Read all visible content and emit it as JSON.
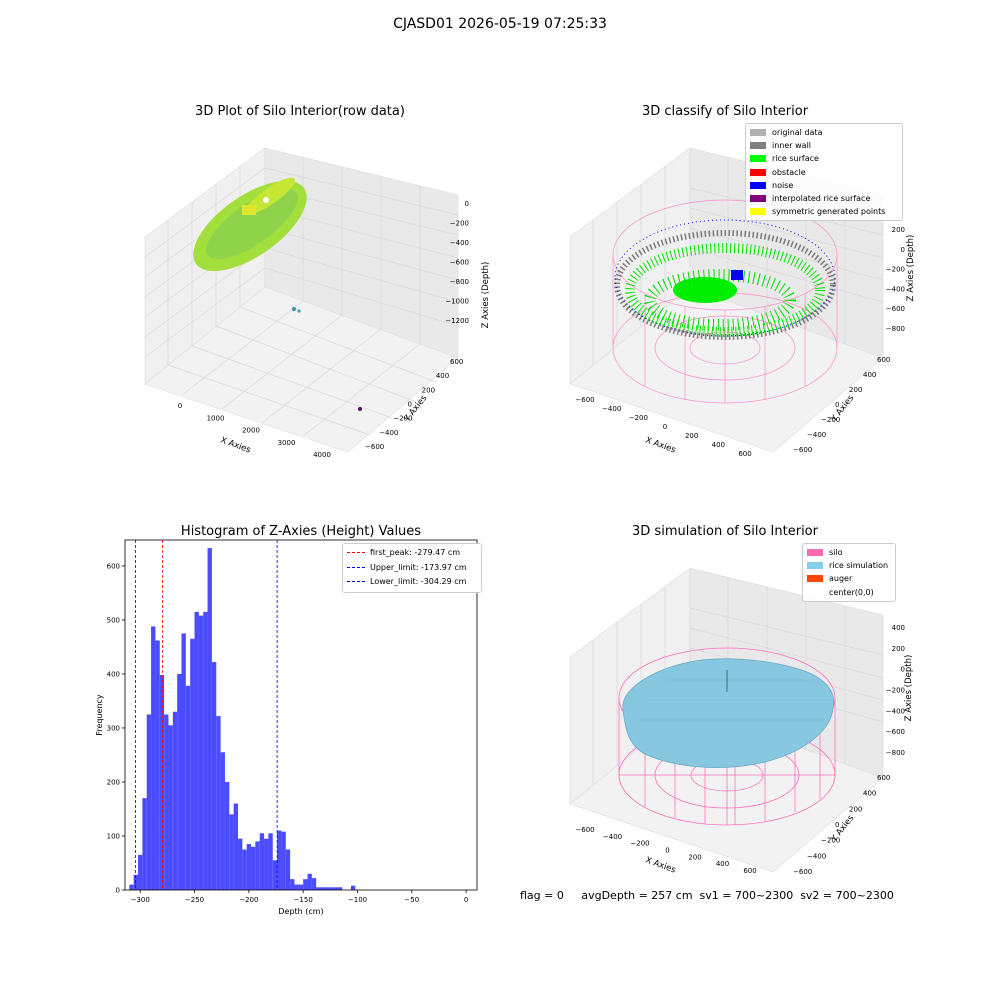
{
  "figure": {
    "suptitle": "CJASD01 2026-05-19 07:25:33",
    "footer": "flag = 0     avgDepth = 257 cm  sv1 = 700~2300  sv2 = 700~2300"
  },
  "panels": {
    "raw": {
      "title": "3D Plot of Silo Interior(row data)",
      "xlabel": "X Axies",
      "ylabel": "Y Axies",
      "zlabel": "Z Axies (Depth)",
      "xticks": [
        "0",
        "1000",
        "2000",
        "3000",
        "4000"
      ],
      "yticks": [
        "600",
        "400",
        "200",
        "0",
        "−200",
        "−400",
        "−600"
      ],
      "zticks": [
        "0",
        "−200",
        "−400",
        "−600",
        "−800",
        "−1000",
        "−1200"
      ]
    },
    "classify": {
      "title": "3D classify of Silo Interior",
      "xlabel": "X Axies",
      "ylabel": "Y Axies",
      "zlabel": "Z Axies (Depth)",
      "xticks": [
        "−600",
        "−400",
        "−200",
        "0",
        "200",
        "400",
        "600"
      ],
      "yticks": [
        "600",
        "400",
        "200",
        "0",
        "−200",
        "−400",
        "−600"
      ],
      "zticks": [
        "200",
        "0",
        "−200",
        "−400",
        "−600",
        "−800"
      ],
      "legend": [
        {
          "label": "original data",
          "color": "#b0b0b0"
        },
        {
          "label": "inner wall",
          "color": "#808080"
        },
        {
          "label": "rice surface",
          "color": "#00ff00"
        },
        {
          "label": "obstacle",
          "color": "#ff0000"
        },
        {
          "label": "noise",
          "color": "#0000ff"
        },
        {
          "label": "interpolated rice surface",
          "color": "#800080"
        },
        {
          "label": "symmetric generated points",
          "color": "#ffff00"
        }
      ]
    },
    "simulation": {
      "title": "3D simulation of Silo Interior",
      "xlabel": "X Axies",
      "ylabel": "Y Axies",
      "zlabel": "Z Axies (Depth)",
      "xticks": [
        "−600",
        "−400",
        "−200",
        "0",
        "200",
        "400",
        "600"
      ],
      "yticks": [
        "600",
        "400",
        "200",
        "0",
        "−200",
        "−400",
        "−600"
      ],
      "zticks": [
        "400",
        "200",
        "0",
        "−200",
        "−400",
        "−600",
        "−800"
      ],
      "legend": [
        {
          "label": "silo",
          "color": "#ff69b4"
        },
        {
          "label": "rice simulation",
          "color": "#87ceeb"
        },
        {
          "label": "auger",
          "color": "#ff4500"
        },
        {
          "label": "center(0,0)",
          "color": "#ffffff"
        }
      ]
    }
  },
  "chart_data": {
    "type": "bar",
    "title": "Histogram of Z-Axies (Height) Values",
    "xlabel": "Depth (cm)",
    "ylabel": "Frequency",
    "xlim": [
      -314,
      10
    ],
    "ylim": [
      0,
      648
    ],
    "xticks": [
      -300,
      -250,
      -200,
      -150,
      -100,
      -50,
      0
    ],
    "yticks": [
      0,
      100,
      200,
      300,
      400,
      500,
      600
    ],
    "bin_start": -310,
    "bin_width": 4,
    "values": [
      10,
      28,
      65,
      170,
      325,
      488,
      462,
      398,
      325,
      305,
      330,
      400,
      475,
      378,
      465,
      515,
      508,
      515,
      633,
      422,
      322,
      255,
      200,
      140,
      160,
      95,
      75,
      85,
      80,
      90,
      105,
      95,
      105,
      55,
      110,
      108,
      75,
      20,
      10,
      10,
      20,
      30,
      22,
      5,
      5,
      5,
      5,
      5,
      5,
      0,
      0,
      8
    ],
    "bar_color": "#4b4bff",
    "vlines": [
      {
        "label": "first_peak: -279.47 cm",
        "x": -279.47,
        "color": "#ff0000"
      },
      {
        "label": "Upper_limit: -173.97 cm",
        "x": -173.97,
        "color": "#0000ff"
      },
      {
        "label": "Lower_limit: -304.29 cm",
        "x": -304.29,
        "color": "#0000ff"
      }
    ],
    "legend_position": "upper right"
  }
}
